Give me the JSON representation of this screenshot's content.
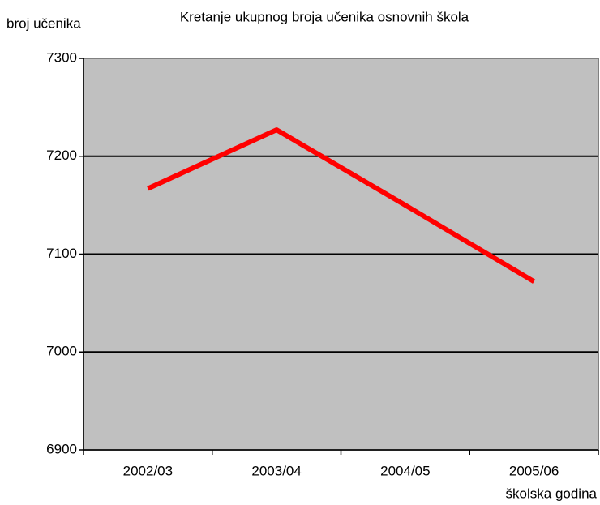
{
  "chart_data": {
    "type": "line",
    "title": "Kretanje ukupnog broja učenika osnovnih škola",
    "y_axis_label": "broj učenika",
    "x_axis_label": "školska godina",
    "categories": [
      "2002/03",
      "2003/04",
      "2004/05",
      "2005/06"
    ],
    "series": [
      {
        "name": "broj učenika",
        "color": "#ff0000",
        "values": [
          7167,
          7227,
          7150,
          7072
        ]
      }
    ],
    "ylim": [
      6900,
      7300
    ],
    "yticks": [
      6900,
      7000,
      7100,
      7200,
      7300
    ],
    "grid": true,
    "plot_background": "#c0c0c0"
  }
}
